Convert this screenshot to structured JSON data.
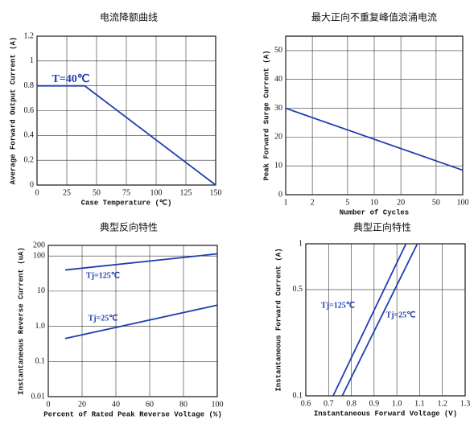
{
  "chart_data": [
    {
      "type": "line",
      "title": "电流降额曲线",
      "xlabel": "Case Temperature (℃)",
      "ylabel": "Average Forward Output Current (A)",
      "xlim": [
        0,
        150
      ],
      "xticks": [
        0,
        25,
        50,
        75,
        100,
        125,
        150
      ],
      "ylim": [
        0,
        1.2
      ],
      "yticks": [
        0,
        0.2,
        0.4,
        0.6,
        0.8,
        1.0,
        1.2
      ],
      "grid": true,
      "annotation": "T=40℃",
      "series": [
        {
          "color": "#1f3fb0",
          "x": [
            0,
            40,
            150
          ],
          "values": [
            0.8,
            0.8,
            0
          ]
        }
      ]
    },
    {
      "type": "line",
      "title": "最大正向不重复峰值浪涌电流",
      "xlabel": "Number of Cycles",
      "ylabel": "Peak Forward Surge Current (A)",
      "xlim": [
        1,
        100
      ],
      "xticks": [
        1,
        2,
        5,
        10,
        20,
        50,
        100
      ],
      "xscale": "log",
      "ylim": [
        0,
        55
      ],
      "yticks": [
        0,
        10,
        20,
        30,
        40,
        50
      ],
      "grid": true,
      "series": [
        {
          "color": "#1f3fb0",
          "x": [
            1,
            100
          ],
          "values": [
            30,
            8.5
          ]
        }
      ]
    },
    {
      "type": "line",
      "title": "典型反向特性",
      "xlabel": "Percent of Rated Peak Reverse Voltage (%)",
      "ylabel": "Instantaneous Reverse Current (uA)",
      "xlim": [
        0,
        100
      ],
      "xticks": [
        0,
        20,
        40,
        60,
        80,
        100
      ],
      "ylim": [
        0.01,
        200
      ],
      "yticks": [
        0.01,
        0.1,
        {
          "value": 1,
          "label": "1.0"
        },
        10,
        100,
        200
      ],
      "yscale": "log",
      "grid": true,
      "series": [
        {
          "name": "Tj=125℃",
          "color": "#1f3fb0",
          "x": [
            10,
            100
          ],
          "values": [
            40,
            115
          ]
        },
        {
          "name": "Tj=25℃",
          "color": "#1f3fb0",
          "x": [
            10,
            100
          ],
          "values": [
            0.45,
            4
          ]
        }
      ]
    },
    {
      "type": "line",
      "title": "典型正向特性",
      "xlabel": "Instantaneous Forward Voltage (V)",
      "ylabel": "Instantaneous Forward Current (A)",
      "xlim": [
        0.6,
        1.3
      ],
      "xticks": [
        0.6,
        0.7,
        0.8,
        0.9,
        {
          "value": 1,
          "label": "1.0"
        },
        1.1,
        1.2,
        1.3
      ],
      "ylim": [
        0.1,
        1
      ],
      "yticks": [
        0.1,
        0.5,
        1
      ],
      "yscale": "log",
      "grid": true,
      "series": [
        {
          "name": "Tj=125℃",
          "color": "#1f3fb0",
          "x": [
            0.72,
            1.04
          ],
          "values": [
            0.1,
            1
          ]
        },
        {
          "name": "Tj=25℃",
          "color": "#1f3fb0",
          "x": [
            0.76,
            1.09
          ],
          "values": [
            0.1,
            1
          ]
        }
      ]
    }
  ]
}
